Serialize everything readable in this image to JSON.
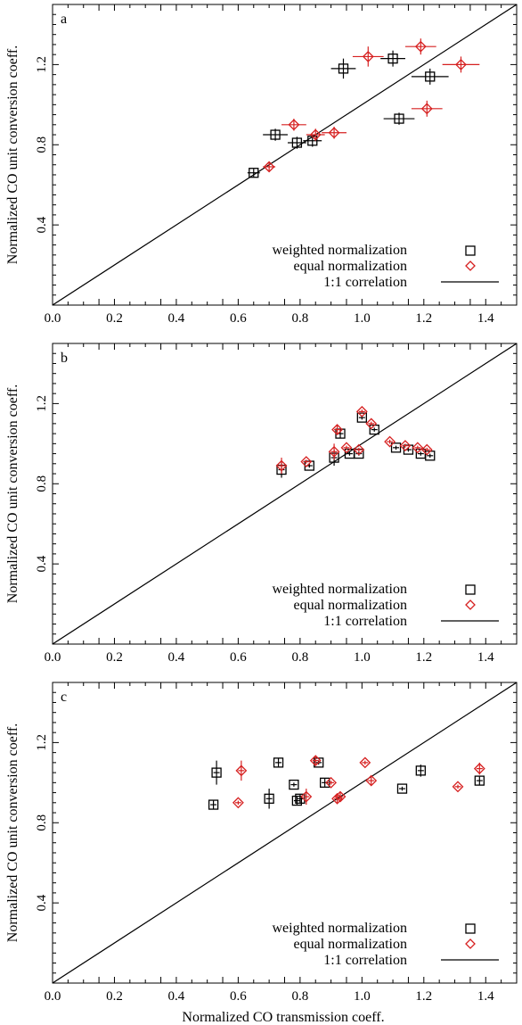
{
  "figure": {
    "y_axis_label": "Normalized CO unit conversion coeff.",
    "x_axis_label": "Normalized CO transmission coeff.",
    "colors": {
      "weighted": "#000000",
      "equal": "#d62020",
      "line": "#000000"
    },
    "legend": {
      "weighted": "weighted normalization",
      "equal": "equal normalization",
      "correlation": "1:1 correlation"
    }
  },
  "chart_data": [
    {
      "type": "scatter",
      "panel_label": "a",
      "xlim": [
        0.0,
        1.5
      ],
      "ylim": [
        0.0,
        1.5
      ],
      "xticks": [
        "0.0",
        "0.2",
        "0.4",
        "0.6",
        "0.8",
        "1.0",
        "1.2",
        "1.4"
      ],
      "yticks": [
        "0.4",
        "0.8",
        "1.2"
      ],
      "x_ticks_val": [
        0.0,
        0.2,
        0.4,
        0.6,
        0.8,
        1.0,
        1.2,
        1.4
      ],
      "y_ticks_val": [
        0.4,
        0.8,
        1.2
      ],
      "legend_position": "bottom-right",
      "series": [
        {
          "name": "weighted normalization",
          "marker": "square",
          "points": [
            {
              "x": 0.65,
              "y": 0.66,
              "xerr": 0.02,
              "yerr": 0.02
            },
            {
              "x": 0.72,
              "y": 0.85,
              "xerr": 0.04,
              "yerr": 0.03
            },
            {
              "x": 0.79,
              "y": 0.81,
              "xerr": 0.03,
              "yerr": 0.03
            },
            {
              "x": 0.84,
              "y": 0.82,
              "xerr": 0.03,
              "yerr": 0.03
            },
            {
              "x": 0.94,
              "y": 1.18,
              "xerr": 0.04,
              "yerr": 0.05
            },
            {
              "x": 1.1,
              "y": 1.23,
              "xerr": 0.04,
              "yerr": 0.04
            },
            {
              "x": 1.12,
              "y": 0.93,
              "xerr": 0.05,
              "yerr": 0.03
            },
            {
              "x": 1.22,
              "y": 1.14,
              "xerr": 0.06,
              "yerr": 0.04
            }
          ]
        },
        {
          "name": "equal normalization",
          "marker": "diamond",
          "points": [
            {
              "x": 0.7,
              "y": 0.69,
              "xerr": 0.02,
              "yerr": 0.02
            },
            {
              "x": 0.78,
              "y": 0.9,
              "xerr": 0.04,
              "yerr": 0.03
            },
            {
              "x": 0.85,
              "y": 0.85,
              "xerr": 0.03,
              "yerr": 0.03
            },
            {
              "x": 0.91,
              "y": 0.86,
              "xerr": 0.04,
              "yerr": 0.03
            },
            {
              "x": 1.02,
              "y": 1.24,
              "xerr": 0.05,
              "yerr": 0.05
            },
            {
              "x": 1.19,
              "y": 1.29,
              "xerr": 0.05,
              "yerr": 0.04
            },
            {
              "x": 1.21,
              "y": 0.98,
              "xerr": 0.05,
              "yerr": 0.04
            },
            {
              "x": 1.32,
              "y": 1.2,
              "xerr": 0.06,
              "yerr": 0.04
            }
          ]
        }
      ]
    },
    {
      "type": "scatter",
      "panel_label": "b",
      "xlim": [
        0.0,
        1.5
      ],
      "ylim": [
        0.0,
        1.5
      ],
      "xticks": [
        "0.0",
        "0.2",
        "0.4",
        "0.6",
        "0.8",
        "1.0",
        "1.2",
        "1.4"
      ],
      "yticks": [
        "0.4",
        "0.8",
        "1.2"
      ],
      "x_ticks_val": [
        0.0,
        0.2,
        0.4,
        0.6,
        0.8,
        1.0,
        1.2,
        1.4
      ],
      "y_ticks_val": [
        0.4,
        0.8,
        1.2
      ],
      "legend_position": "bottom-right",
      "series": [
        {
          "name": "weighted normalization",
          "marker": "square",
          "points": [
            {
              "x": 0.74,
              "y": 0.87,
              "xerr": 0.01,
              "yerr": 0.04
            },
            {
              "x": 0.83,
              "y": 0.89,
              "xerr": 0.01,
              "yerr": 0.01
            },
            {
              "x": 0.91,
              "y": 0.93,
              "xerr": 0.01,
              "yerr": 0.04
            },
            {
              "x": 0.93,
              "y": 1.05,
              "xerr": 0.01,
              "yerr": 0.02
            },
            {
              "x": 0.96,
              "y": 0.95,
              "xerr": 0.01,
              "yerr": 0.01
            },
            {
              "x": 0.99,
              "y": 0.95,
              "xerr": 0.01,
              "yerr": 0.01
            },
            {
              "x": 1.0,
              "y": 1.13,
              "xerr": 0.01,
              "yerr": 0.01
            },
            {
              "x": 1.04,
              "y": 1.07,
              "xerr": 0.01,
              "yerr": 0.01
            },
            {
              "x": 1.11,
              "y": 0.98,
              "xerr": 0.01,
              "yerr": 0.01
            },
            {
              "x": 1.15,
              "y": 0.97,
              "xerr": 0.01,
              "yerr": 0.01
            },
            {
              "x": 1.19,
              "y": 0.95,
              "xerr": 0.01,
              "yerr": 0.01
            },
            {
              "x": 1.22,
              "y": 0.94,
              "xerr": 0.01,
              "yerr": 0.01
            }
          ]
        },
        {
          "name": "equal normalization",
          "marker": "diamond",
          "points": [
            {
              "x": 0.74,
              "y": 0.89,
              "xerr": 0.01,
              "yerr": 0.04
            },
            {
              "x": 0.82,
              "y": 0.91,
              "xerr": 0.01,
              "yerr": 0.01
            },
            {
              "x": 0.91,
              "y": 0.96,
              "xerr": 0.01,
              "yerr": 0.04
            },
            {
              "x": 0.92,
              "y": 1.07,
              "xerr": 0.01,
              "yerr": 0.02
            },
            {
              "x": 0.95,
              "y": 0.98,
              "xerr": 0.01,
              "yerr": 0.01
            },
            {
              "x": 0.99,
              "y": 0.97,
              "xerr": 0.01,
              "yerr": 0.01
            },
            {
              "x": 1.0,
              "y": 1.16,
              "xerr": 0.01,
              "yerr": 0.01
            },
            {
              "x": 1.03,
              "y": 1.1,
              "xerr": 0.01,
              "yerr": 0.01
            },
            {
              "x": 1.09,
              "y": 1.01,
              "xerr": 0.01,
              "yerr": 0.01
            },
            {
              "x": 1.14,
              "y": 0.99,
              "xerr": 0.01,
              "yerr": 0.01
            },
            {
              "x": 1.18,
              "y": 0.98,
              "xerr": 0.01,
              "yerr": 0.01
            },
            {
              "x": 1.21,
              "y": 0.97,
              "xerr": 0.01,
              "yerr": 0.01
            }
          ]
        }
      ]
    },
    {
      "type": "scatter",
      "panel_label": "c",
      "xlim": [
        0.0,
        1.5
      ],
      "ylim": [
        0.0,
        1.5
      ],
      "xticks": [
        "0.0",
        "0.2",
        "0.4",
        "0.6",
        "0.8",
        "1.0",
        "1.2",
        "1.4"
      ],
      "yticks": [
        "0.4",
        "0.8",
        "1.2"
      ],
      "x_ticks_val": [
        0.0,
        0.2,
        0.4,
        0.6,
        0.8,
        1.0,
        1.2,
        1.4
      ],
      "y_ticks_val": [
        0.4,
        0.8,
        1.2
      ],
      "legend_position": "bottom-right",
      "series": [
        {
          "name": "weighted normalization",
          "marker": "square",
          "points": [
            {
              "x": 0.52,
              "y": 0.89,
              "xerr": 0.01,
              "yerr": 0.02
            },
            {
              "x": 0.53,
              "y": 1.05,
              "xerr": 0.01,
              "yerr": 0.06
            },
            {
              "x": 0.7,
              "y": 0.92,
              "xerr": 0.01,
              "yerr": 0.05
            },
            {
              "x": 0.73,
              "y": 1.1,
              "xerr": 0.01,
              "yerr": 0.02
            },
            {
              "x": 0.78,
              "y": 0.99,
              "xerr": 0.01,
              "yerr": 0.01
            },
            {
              "x": 0.79,
              "y": 0.91,
              "xerr": 0.01,
              "yerr": 0.02
            },
            {
              "x": 0.8,
              "y": 0.92,
              "xerr": 0.01,
              "yerr": 0.02
            },
            {
              "x": 0.86,
              "y": 1.1,
              "xerr": 0.01,
              "yerr": 0.01
            },
            {
              "x": 0.88,
              "y": 1.0,
              "xerr": 0.01,
              "yerr": 0.02
            },
            {
              "x": 1.13,
              "y": 0.97,
              "xerr": 0.01,
              "yerr": 0.01
            },
            {
              "x": 1.19,
              "y": 1.06,
              "xerr": 0.01,
              "yerr": 0.03
            },
            {
              "x": 1.38,
              "y": 1.01,
              "xerr": 0.01,
              "yerr": 0.02
            }
          ]
        },
        {
          "name": "equal normalization",
          "marker": "diamond",
          "points": [
            {
              "x": 0.6,
              "y": 0.9,
              "xerr": 0.01,
              "yerr": 0.01
            },
            {
              "x": 0.61,
              "y": 1.06,
              "xerr": 0.01,
              "yerr": 0.05
            },
            {
              "x": 0.82,
              "y": 0.93,
              "xerr": 0.01,
              "yerr": 0.04
            },
            {
              "x": 0.85,
              "y": 1.11,
              "xerr": 0.01,
              "yerr": 0.02
            },
            {
              "x": 0.9,
              "y": 1.0,
              "xerr": 0.01,
              "yerr": 0.01
            },
            {
              "x": 0.92,
              "y": 0.92,
              "xerr": 0.01,
              "yerr": 0.02
            },
            {
              "x": 0.93,
              "y": 0.93,
              "xerr": 0.01,
              "yerr": 0.02
            },
            {
              "x": 1.01,
              "y": 1.1,
              "xerr": 0.01,
              "yerr": 0.01
            },
            {
              "x": 1.03,
              "y": 1.01,
              "xerr": 0.01,
              "yerr": 0.02
            },
            {
              "x": 1.31,
              "y": 0.98,
              "xerr": 0.01,
              "yerr": 0.01
            },
            {
              "x": 1.38,
              "y": 1.07,
              "xerr": 0.01,
              "yerr": 0.03
            }
          ]
        }
      ]
    }
  ]
}
